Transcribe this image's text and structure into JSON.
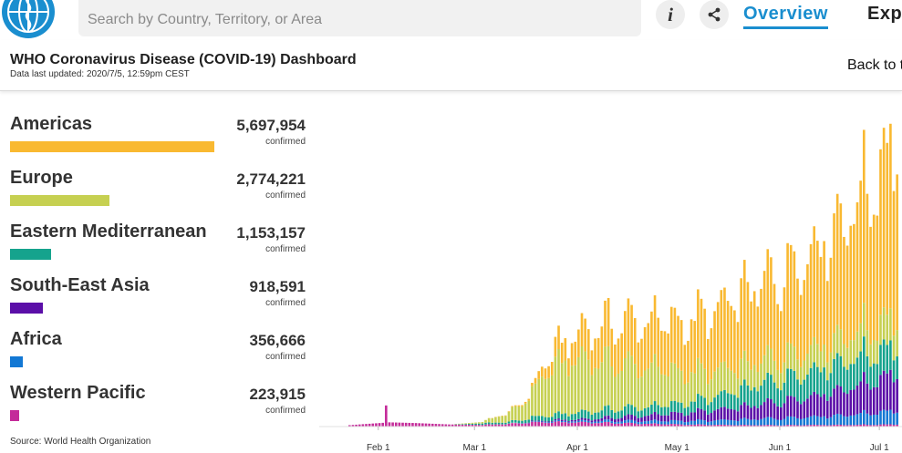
{
  "header": {
    "logo_icon": "who-emblem-icon",
    "search_placeholder": "Search by Country, Territory, or Area",
    "info_icon": "info-icon",
    "info_glyph": "i",
    "share_icon": "share-icon",
    "nav_overview": "Overview",
    "nav_explore": "Exp"
  },
  "titlebar": {
    "title": "WHO Coronavirus Disease (COVID-19) Dashboard",
    "updated": "Data last updated: 2020/7/5, 12:59pm CEST",
    "back_link": "Back to t"
  },
  "regions": [
    {
      "name": "Americas",
      "value": "5,697,954",
      "unit": "confirmed",
      "share": 1.0,
      "color": "#f9b931"
    },
    {
      "name": "Europe",
      "value": "2,774,221",
      "unit": "confirmed",
      "share": 0.487,
      "color": "#c6d051"
    },
    {
      "name": "Eastern Mediterranean",
      "value": "1,153,157",
      "unit": "confirmed",
      "share": 0.202,
      "color": "#15a38d"
    },
    {
      "name": "South-East Asia",
      "value": "918,591",
      "unit": "confirmed",
      "share": 0.161,
      "color": "#5b0fa8"
    },
    {
      "name": "Africa",
      "value": "356,666",
      "unit": "confirmed",
      "share": 0.063,
      "color": "#1378d4"
    },
    {
      "name": "Western Pacific",
      "value": "223,915",
      "unit": "confirmed",
      "share": 0.039,
      "color": "#c42b9a"
    }
  ],
  "source": "Source: World Health Organization",
  "chart_data": {
    "type": "bar",
    "stacked": true,
    "x_tick_labels": [
      "Feb 1",
      "Mar 1",
      "Apr 1",
      "May 1",
      "Jun 1",
      "Jul 1"
    ],
    "x_tick_days": [
      9,
      38,
      69,
      99,
      130,
      160
    ],
    "days": 166,
    "ylim": [
      0,
      220000
    ],
    "stack_order": [
      "Western Pacific",
      "Africa",
      "South-East Asia",
      "Eastern Mediterranean",
      "Europe",
      "Americas"
    ],
    "colors": [
      "#c42b9a",
      "#1378d4",
      "#5b0fa8",
      "#15a38d",
      "#c6d051",
      "#f9b931"
    ],
    "peak_day": 11,
    "peak_value": 15000,
    "knots": {
      "day": [
        0,
        12,
        20,
        30,
        40,
        50,
        55,
        60,
        70,
        80,
        90,
        100,
        110,
        120,
        130,
        140,
        150,
        160,
        165
      ],
      "Western Pacific": [
        1000,
        3000,
        2500,
        1500,
        1200,
        2000,
        3000,
        3000,
        3000,
        2500,
        2000,
        1500,
        1200,
        1000,
        1000,
        1200,
        1200,
        1400,
        1600
      ],
      "Africa": [
        0,
        0,
        0,
        0,
        0,
        100,
        300,
        600,
        1000,
        1500,
        2000,
        2500,
        3000,
        4000,
        5000,
        6000,
        7000,
        9000,
        10000
      ],
      "South-East Asia": [
        0,
        0,
        0,
        0,
        0,
        100,
        300,
        600,
        1200,
        2500,
        4000,
        5500,
        7000,
        9000,
        12000,
        15000,
        19000,
        24000,
        28000
      ],
      "Eastern Mediterranean": [
        0,
        0,
        0,
        0,
        1000,
        1500,
        3000,
        3500,
        5000,
        6000,
        6000,
        7000,
        9000,
        13000,
        16000,
        19000,
        20000,
        20000,
        19000
      ],
      "Europe": [
        0,
        0,
        0,
        0,
        1000,
        8000,
        18000,
        33000,
        38000,
        32000,
        28000,
        22000,
        18000,
        16000,
        16000,
        16000,
        18000,
        20000,
        22000
      ],
      "Americas": [
        0,
        0,
        0,
        0,
        50,
        500,
        2000,
        10000,
        20000,
        29000,
        33000,
        35000,
        42000,
        52000,
        58000,
        71000,
        85000,
        110000,
        130000
      ]
    }
  }
}
